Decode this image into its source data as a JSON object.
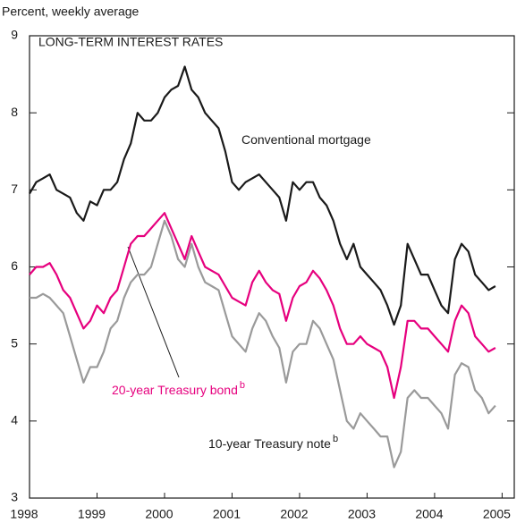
{
  "chart_data": {
    "type": "line",
    "title": "LONG-TERM INTEREST RATES",
    "y_label": "Percent, weekly average",
    "x": [
      1998.0,
      1998.1,
      1998.2,
      1998.3,
      1998.4,
      1998.5,
      1998.6,
      1998.7,
      1998.8,
      1998.9,
      1999.0,
      1999.1,
      1999.2,
      1999.3,
      1999.4,
      1999.5,
      1999.6,
      1999.7,
      1999.8,
      1999.9,
      2000.0,
      2000.1,
      2000.2,
      2000.3,
      2000.4,
      2000.5,
      2000.6,
      2000.7,
      2000.8,
      2000.9,
      2001.0,
      2001.1,
      2001.2,
      2001.3,
      2001.4,
      2001.5,
      2001.6,
      2001.7,
      2001.8,
      2001.9,
      2002.0,
      2002.1,
      2002.2,
      2002.3,
      2002.4,
      2002.5,
      2002.6,
      2002.7,
      2002.8,
      2002.9,
      2003.0,
      2003.1,
      2003.2,
      2003.3,
      2003.4,
      2003.5,
      2003.6,
      2003.7,
      2003.8,
      2003.9,
      2004.0,
      2004.1,
      2004.2,
      2004.3,
      2004.4,
      2004.5,
      2004.6,
      2004.7,
      2004.8,
      2004.9
    ],
    "series": [
      {
        "name": "Conventional mortgage",
        "color": "#1a1a1a",
        "values": [
          6.95,
          7.1,
          7.15,
          7.2,
          7.0,
          6.95,
          6.9,
          6.7,
          6.6,
          6.85,
          6.8,
          7.0,
          7.0,
          7.1,
          7.4,
          7.6,
          8.0,
          7.9,
          7.9,
          8.0,
          8.2,
          8.3,
          8.35,
          8.6,
          8.3,
          8.2,
          8.0,
          7.9,
          7.8,
          7.5,
          7.1,
          7.0,
          7.1,
          7.15,
          7.2,
          7.1,
          7.0,
          6.9,
          6.6,
          7.1,
          7.0,
          7.1,
          7.1,
          6.9,
          6.8,
          6.6,
          6.3,
          6.1,
          6.3,
          6.0,
          5.9,
          5.8,
          5.7,
          5.5,
          5.25,
          5.5,
          6.3,
          6.1,
          5.9,
          5.9,
          5.7,
          5.5,
          5.4,
          6.1,
          6.3,
          6.2,
          5.9,
          5.8,
          5.7,
          5.75
        ]
      },
      {
        "name": "20-year Treasury bond",
        "sup": "b",
        "color": "#e6007e",
        "values": [
          5.9,
          6.0,
          6.0,
          6.05,
          5.9,
          5.7,
          5.6,
          5.4,
          5.2,
          5.3,
          5.5,
          5.4,
          5.6,
          5.7,
          6.0,
          6.3,
          6.4,
          6.4,
          6.5,
          6.6,
          6.7,
          6.5,
          6.3,
          6.1,
          6.4,
          6.2,
          6.0,
          5.95,
          5.9,
          5.75,
          5.6,
          5.55,
          5.5,
          5.8,
          5.95,
          5.8,
          5.7,
          5.65,
          5.3,
          5.6,
          5.75,
          5.8,
          5.95,
          5.85,
          5.7,
          5.5,
          5.2,
          5.0,
          5.0,
          5.1,
          5.0,
          4.95,
          4.9,
          4.7,
          4.3,
          4.7,
          5.3,
          5.3,
          5.2,
          5.2,
          5.1,
          5.0,
          4.9,
          5.3,
          5.5,
          5.4,
          5.1,
          5.0,
          4.9,
          4.95
        ]
      },
      {
        "name": "10-year Treasury note",
        "sup": "b",
        "color": "#9a9a9a",
        "values": [
          5.6,
          5.6,
          5.65,
          5.6,
          5.5,
          5.4,
          5.1,
          4.8,
          4.5,
          4.7,
          4.7,
          4.9,
          5.2,
          5.3,
          5.6,
          5.8,
          5.9,
          5.9,
          6.0,
          6.3,
          6.6,
          6.4,
          6.1,
          6.0,
          6.3,
          6.0,
          5.8,
          5.75,
          5.7,
          5.4,
          5.1,
          5.0,
          4.9,
          5.2,
          5.4,
          5.3,
          5.1,
          4.95,
          4.5,
          4.9,
          5.0,
          5.0,
          5.3,
          5.2,
          5.0,
          4.8,
          4.4,
          4.0,
          3.9,
          4.1,
          4.0,
          3.9,
          3.8,
          3.8,
          3.4,
          3.6,
          4.3,
          4.4,
          4.3,
          4.3,
          4.2,
          4.1,
          3.9,
          4.6,
          4.75,
          4.7,
          4.4,
          4.3,
          4.1,
          4.2
        ]
      }
    ],
    "xlim": [
      1998,
      2005.18
    ],
    "xticks": [
      1998,
      1999,
      2000,
      2001,
      2002,
      2003,
      2004,
      2005
    ],
    "ylim": [
      3,
      9
    ],
    "yticks": [
      3,
      4,
      5,
      6,
      7,
      8,
      9
    ]
  }
}
